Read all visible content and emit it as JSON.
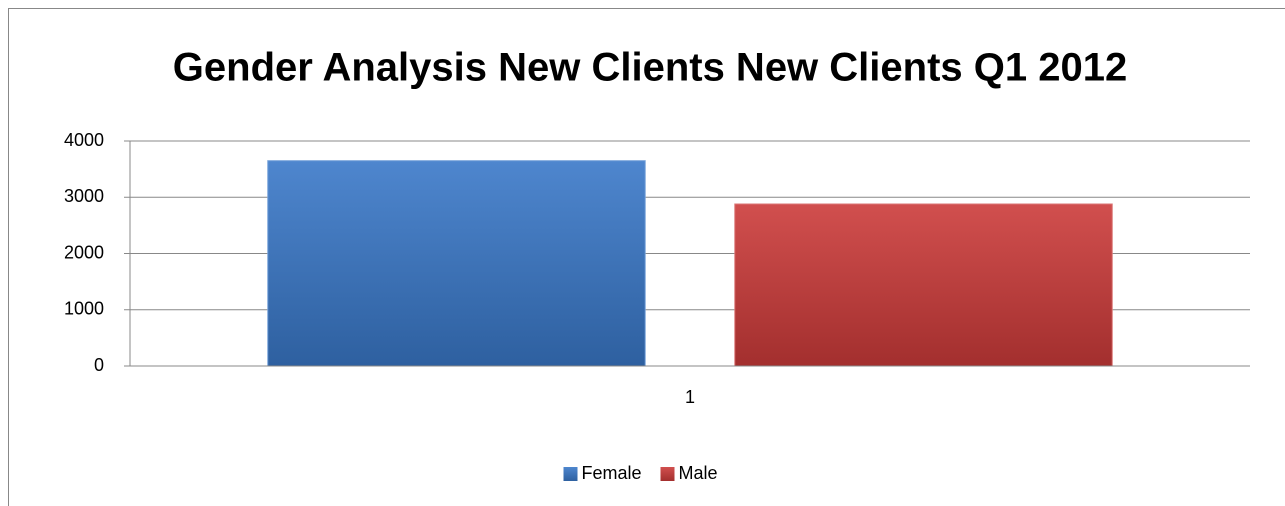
{
  "chart_data": {
    "type": "bar",
    "title": "Gender Analysis New Clients New Clients Q1 2012",
    "categories": [
      "1"
    ],
    "series": [
      {
        "name": "Female",
        "color": "#3a78c8",
        "values": [
          3650
        ]
      },
      {
        "name": "Male",
        "color": "#cc3b3a",
        "values": [
          2880
        ]
      }
    ],
    "ylim": [
      0,
      4000
    ],
    "yticks": [
      0,
      1000,
      2000,
      3000,
      4000
    ],
    "grid": true,
    "legend": "bottom"
  }
}
